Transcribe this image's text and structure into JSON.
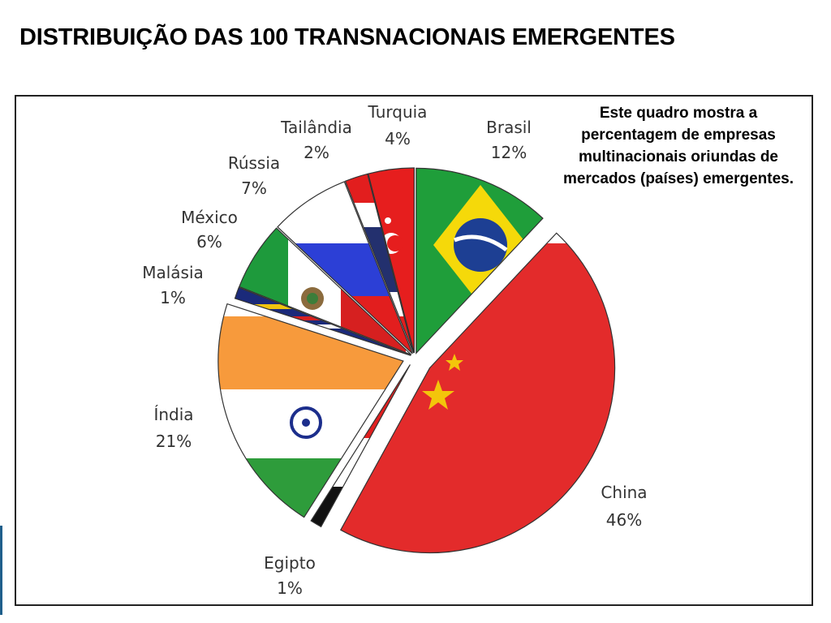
{
  "title": "DISTRIBUIÇÃO DAS 100 TRANSNACIONAIS EMERGENTES",
  "caption": "Este quadro mostra a percentagem de empresas multinacionais oriundas de mercados (países) emergentes.",
  "chart_data": {
    "type": "pie",
    "slices": [
      {
        "name": "Brasil",
        "value": 12,
        "label": "12%",
        "flag": "brazil-flag-icon"
      },
      {
        "name": "China",
        "value": 46,
        "label": "46%",
        "flag": "china-flag-icon"
      },
      {
        "name": "Egipto",
        "value": 1,
        "label": "1%",
        "flag": "egypt-flag-icon"
      },
      {
        "name": "Índia",
        "value": 21,
        "label": "21%",
        "flag": "india-flag-icon"
      },
      {
        "name": "Malásia",
        "value": 1,
        "label": "1%",
        "flag": "malaysia-flag-icon"
      },
      {
        "name": "México",
        "value": 6,
        "label": "6%",
        "flag": "mexico-flag-icon"
      },
      {
        "name": "Rússia",
        "value": 7,
        "label": "7%",
        "flag": "russia-flag-icon"
      },
      {
        "name": "Tailândia",
        "value": 2,
        "label": "2%",
        "flag": "thailand-flag-icon"
      },
      {
        "name": "Turquia",
        "value": 4,
        "label": "4%",
        "flag": "turkey-flag-icon"
      }
    ]
  }
}
